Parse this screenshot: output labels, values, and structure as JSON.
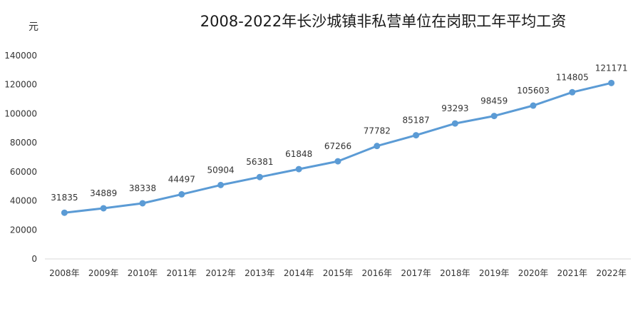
{
  "chart_data": {
    "type": "line",
    "title": "2008-2022年长沙城镇非私营单位在岗职工年平均工资",
    "ylabel": "元",
    "xlabel": "",
    "categories": [
      "2008年",
      "2009年",
      "2010年",
      "2011年",
      "2012年",
      "2013年",
      "2014年",
      "2015年",
      "2016年",
      "2017年",
      "2018年",
      "2019年",
      "2020年",
      "2021年",
      "2022年"
    ],
    "series": [
      {
        "values": [
          31835,
          34889,
          38338,
          44497,
          50904,
          56381,
          61848,
          67266,
          77782,
          85187,
          93293,
          98459,
          105603,
          114805,
          121171
        ]
      }
    ],
    "ylim": [
      0,
      140000
    ],
    "yticks": [
      0,
      20000,
      40000,
      60000,
      80000,
      100000,
      120000,
      140000
    ],
    "grid": false,
    "legend": "none",
    "data_labels": true,
    "colors": {
      "line": "#5b9bd5",
      "axis": "#d9d9d9",
      "text": "#333333"
    }
  }
}
